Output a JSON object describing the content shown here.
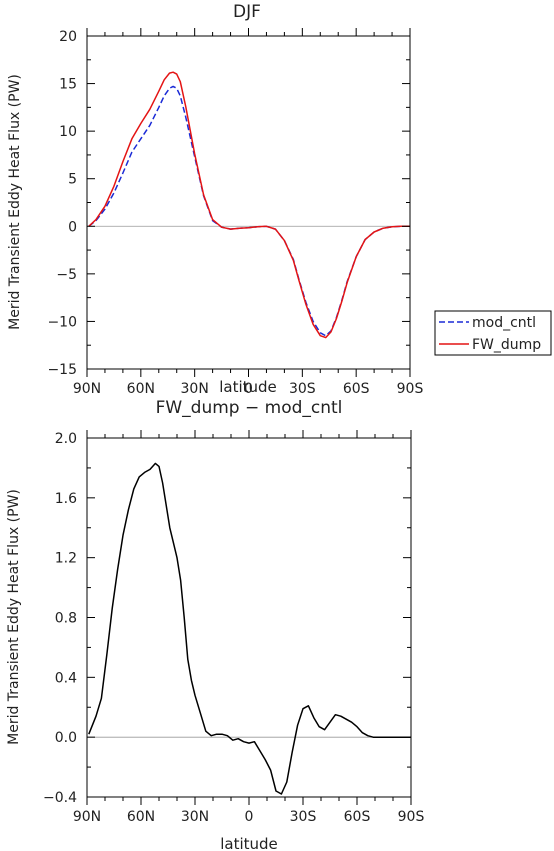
{
  "chart_data": [
    {
      "type": "line",
      "title": "DJF",
      "xlabel": "latitude",
      "ylabel": "Merid Transient Eddy Heat Flux (PW)",
      "xlim": [
        -90,
        90
      ],
      "ylim": [
        -15,
        20
      ],
      "x_ticks": [
        -90,
        -60,
        -30,
        0,
        30,
        60,
        90
      ],
      "x_tick_labels": [
        "90N",
        "60N",
        "30N",
        "0",
        "30S",
        "60S",
        "90S"
      ],
      "y_ticks": [
        -15,
        -10,
        -5,
        0,
        5,
        10,
        15,
        20
      ],
      "y_tick_labels": [
        "−15",
        "−10",
        "−5",
        "0",
        "5",
        "10",
        "15",
        "20"
      ],
      "legend": "outside-right",
      "series": [
        {
          "name": "mod_cntl",
          "color": "#1a2ad6",
          "dash": "dashed",
          "x": [
            -89,
            -85,
            -80,
            -75,
            -70,
            -65,
            -60,
            -55,
            -50,
            -47,
            -44,
            -42,
            -40,
            -38,
            -35,
            -30,
            -25,
            -20,
            -15,
            -10,
            -5,
            0,
            5,
            10,
            15,
            20,
            25,
            28,
            32,
            36,
            40,
            43,
            46,
            49,
            52,
            55,
            60,
            65,
            70,
            75,
            80,
            85,
            90
          ],
          "y": [
            0.0,
            0.6,
            1.8,
            3.5,
            5.6,
            7.8,
            9.2,
            10.6,
            12.5,
            13.7,
            14.5,
            14.7,
            14.5,
            13.7,
            11.5,
            7.3,
            3.2,
            0.6,
            -0.1,
            -0.3,
            -0.2,
            -0.15,
            -0.05,
            0.0,
            -0.3,
            -1.5,
            -3.5,
            -5.5,
            -8.0,
            -10.0,
            -11.2,
            -11.5,
            -11.0,
            -9.6,
            -7.8,
            -5.8,
            -3.2,
            -1.4,
            -0.6,
            -0.2,
            -0.05,
            0.0,
            0.0
          ]
        },
        {
          "name": "FW_dump",
          "color": "#e41414",
          "dash": "solid",
          "x": [
            -89,
            -85,
            -80,
            -75,
            -70,
            -65,
            -60,
            -55,
            -50,
            -47,
            -44,
            -42,
            -40,
            -38,
            -35,
            -30,
            -25,
            -20,
            -15,
            -10,
            -5,
            0,
            5,
            10,
            15,
            20,
            25,
            28,
            32,
            36,
            40,
            43,
            46,
            49,
            52,
            55,
            60,
            65,
            70,
            75,
            80,
            85,
            90
          ],
          "y": [
            0.0,
            0.7,
            2.1,
            4.2,
            6.8,
            9.2,
            10.8,
            12.3,
            14.2,
            15.4,
            16.1,
            16.2,
            16.0,
            15.2,
            12.6,
            7.6,
            3.3,
            0.7,
            -0.1,
            -0.3,
            -0.2,
            -0.15,
            -0.05,
            0.0,
            -0.3,
            -1.5,
            -3.6,
            -5.6,
            -8.2,
            -10.3,
            -11.5,
            -11.7,
            -11.1,
            -9.7,
            -7.9,
            -5.9,
            -3.2,
            -1.4,
            -0.6,
            -0.2,
            -0.05,
            0.0,
            0.0
          ]
        }
      ]
    },
    {
      "type": "line",
      "title": "FW_dump − mod_cntl",
      "xlabel": "latitude",
      "ylabel": "Merid Transient Eddy Heat Flux (PW)",
      "xlim": [
        -90,
        90
      ],
      "ylim": [
        -0.4,
        2.0
      ],
      "x_ticks": [
        -90,
        -60,
        -30,
        0,
        30,
        60,
        90
      ],
      "x_tick_labels": [
        "90N",
        "60N",
        "30N",
        "0",
        "30S",
        "60S",
        "90S"
      ],
      "y_ticks": [
        -0.4,
        0.0,
        0.4,
        0.8,
        1.2,
        1.6,
        2.0
      ],
      "y_tick_labels": [
        "−0.4",
        "0.0",
        "0.4",
        "0.8",
        "1.2",
        "1.6",
        "2.0"
      ],
      "series": [
        {
          "color": "#000000",
          "dash": "solid",
          "x": [
            -89,
            -85,
            -82,
            -79,
            -76,
            -73,
            -70,
            -67,
            -64,
            -61,
            -58,
            -55,
            -52,
            -50,
            -48,
            -46,
            -44,
            -42,
            -40,
            -38,
            -36,
            -34,
            -32,
            -30,
            -27,
            -24,
            -21,
            -18,
            -15,
            -12,
            -9,
            -6,
            -3,
            0,
            3,
            6,
            9,
            12,
            15,
            18,
            21,
            24,
            27,
            30,
            33,
            36,
            39,
            42,
            45,
            48,
            51,
            54,
            57,
            60,
            63,
            66,
            69,
            72,
            75,
            78,
            81,
            84,
            87,
            90
          ],
          "y": [
            0.02,
            0.14,
            0.26,
            0.55,
            0.86,
            1.12,
            1.35,
            1.52,
            1.66,
            1.74,
            1.77,
            1.79,
            1.83,
            1.81,
            1.7,
            1.55,
            1.4,
            1.3,
            1.2,
            1.05,
            0.8,
            0.52,
            0.38,
            0.28,
            0.16,
            0.04,
            0.01,
            0.02,
            0.02,
            0.01,
            -0.02,
            -0.01,
            -0.03,
            -0.04,
            -0.03,
            -0.09,
            -0.15,
            -0.22,
            -0.36,
            -0.38,
            -0.3,
            -0.1,
            0.08,
            0.19,
            0.21,
            0.13,
            0.07,
            0.05,
            0.1,
            0.15,
            0.14,
            0.12,
            0.1,
            0.07,
            0.03,
            0.01,
            0.0,
            0.0,
            0.0,
            0.0,
            0.0,
            0.0,
            0.0,
            0.0
          ]
        }
      ]
    }
  ]
}
